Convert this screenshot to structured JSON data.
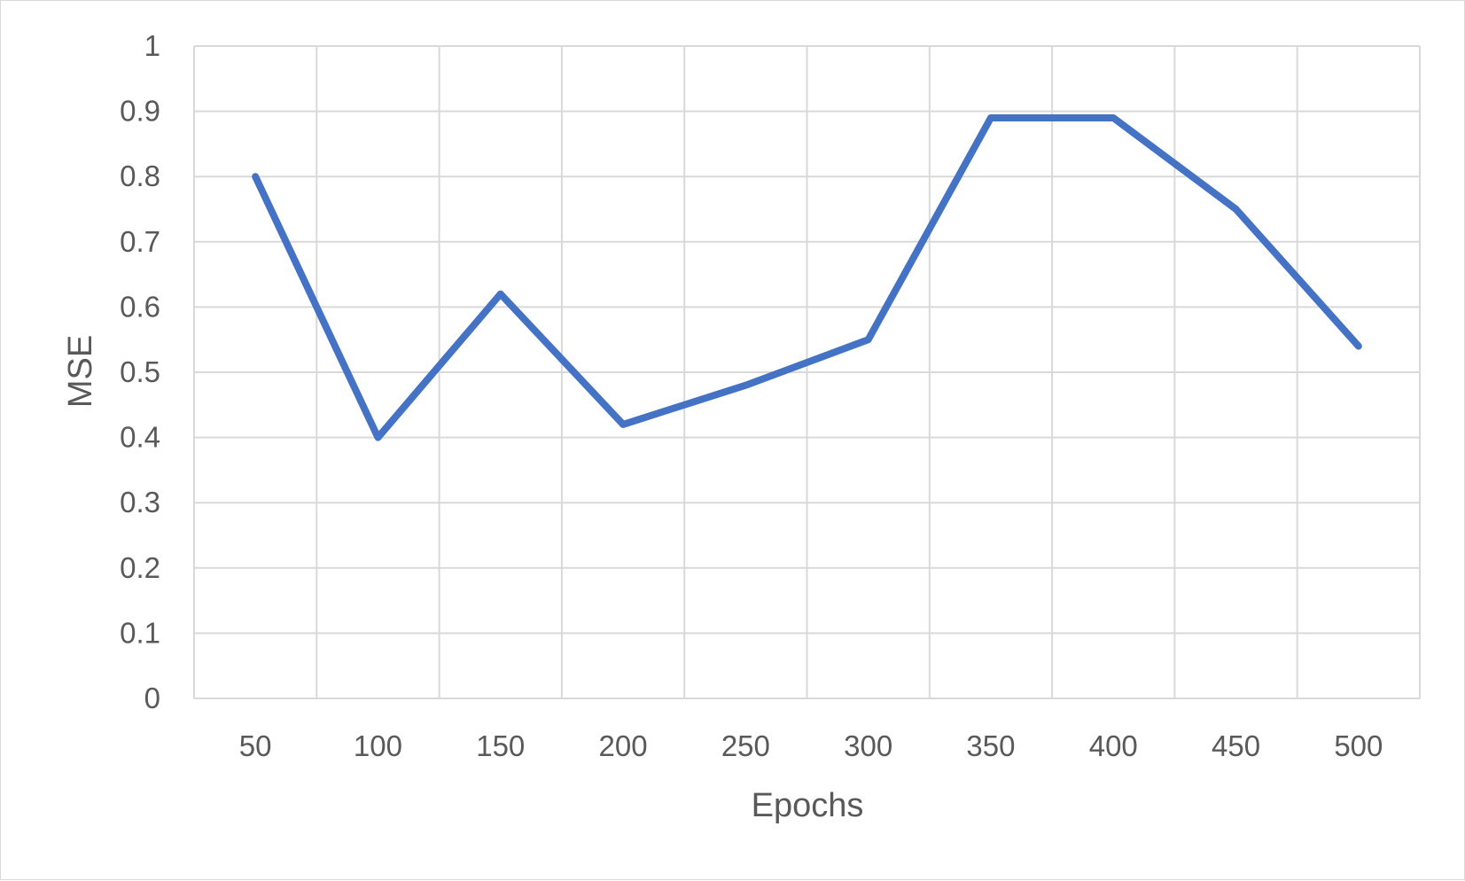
{
  "chart_data": {
    "type": "line",
    "title": "",
    "xlabel": "Epochs",
    "ylabel": "MSE",
    "categories": [
      "50",
      "100",
      "150",
      "200",
      "250",
      "300",
      "350",
      "400",
      "450",
      "500"
    ],
    "series": [
      {
        "values": [
          0.8,
          0.4,
          0.62,
          0.42,
          0.48,
          0.55,
          0.89,
          0.89,
          0.75,
          0.54
        ],
        "color": "#4472C4"
      }
    ],
    "ylim": [
      0,
      1
    ],
    "yticks": [
      0,
      0.1,
      0.2,
      0.3,
      0.4,
      0.5,
      0.6,
      0.7,
      0.8,
      0.9,
      1
    ],
    "ytick_labels": [
      "0",
      "0.1",
      "0.2",
      "0.3",
      "0.4",
      "0.5",
      "0.6",
      "0.7",
      "0.8",
      "0.9",
      "1"
    ],
    "grid": true,
    "legend": "none",
    "colors": {
      "gridline": "#d9d9d9",
      "text": "#595959",
      "border": "#d9d9d9"
    }
  }
}
